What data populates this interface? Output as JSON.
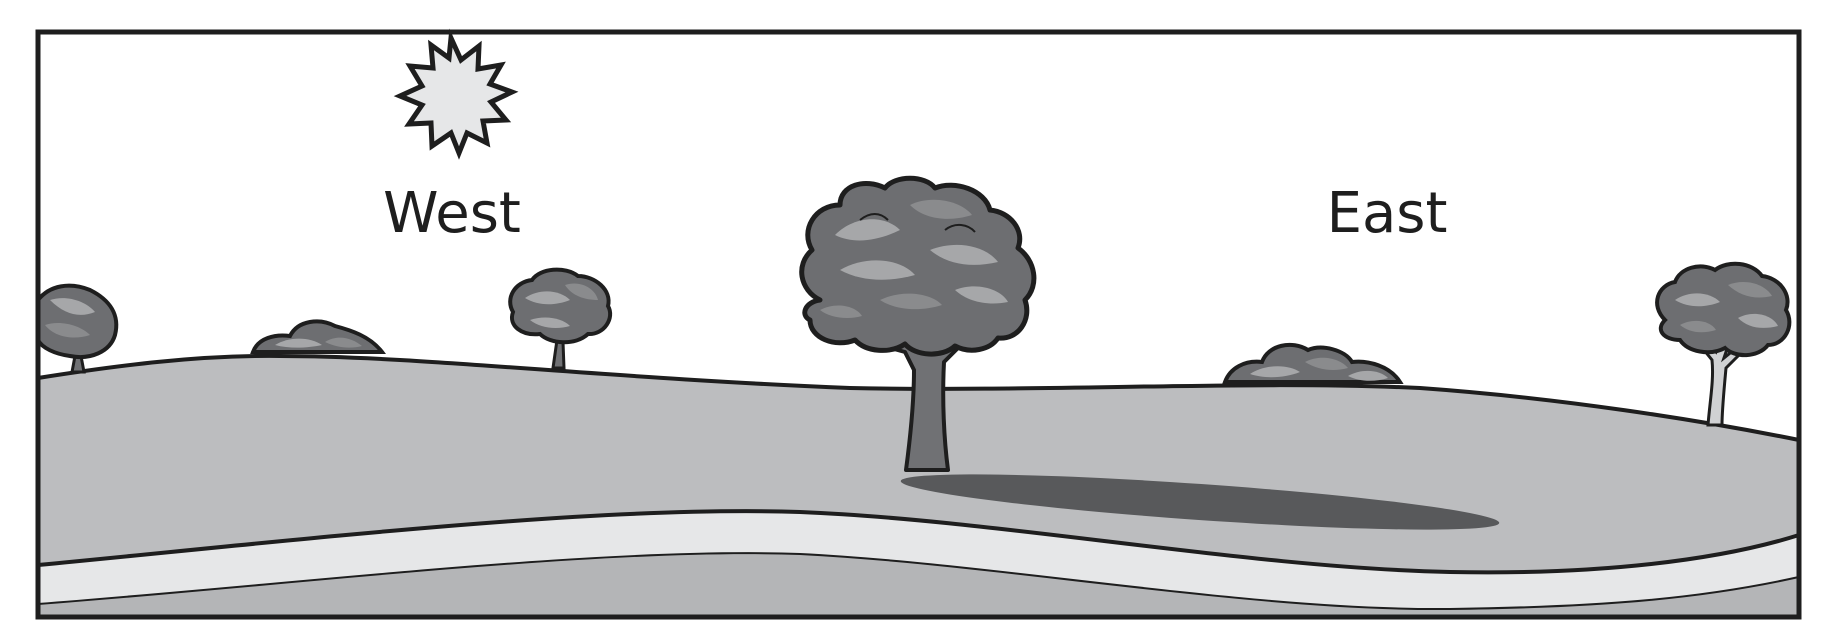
{
  "labels": {
    "west": "West",
    "east": "East"
  },
  "colors": {
    "sky": "#ffffff",
    "outline": "#1e1e1e",
    "hill": "#bcbdbf",
    "road": "#e6e7e8",
    "foreground": "#b4b5b7",
    "shadow": "#58595b",
    "trunk": "#707174",
    "foliage_dark": "#6d6e71",
    "foliage_mid": "#8a8b8d",
    "foliage_light": "#a6a7a9",
    "sun": "#e6e7e8"
  }
}
